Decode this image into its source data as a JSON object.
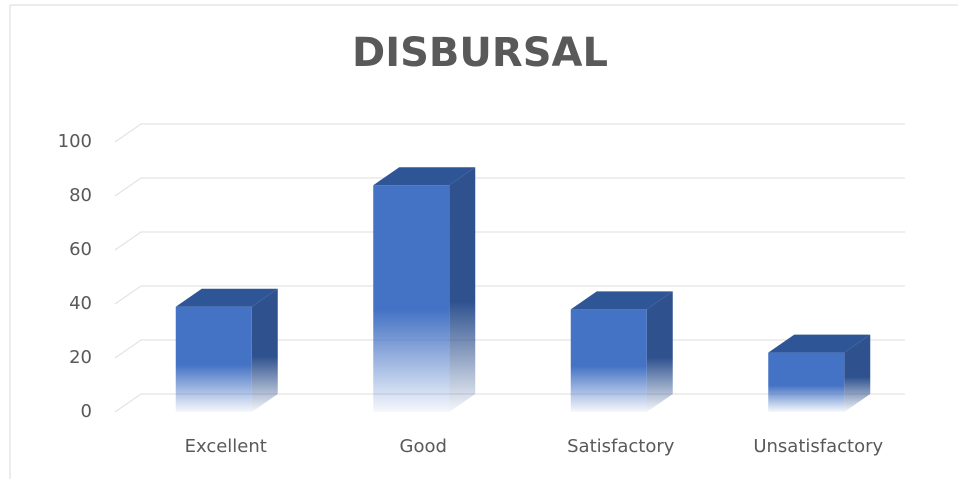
{
  "chart_data": {
    "type": "bar3d",
    "title": "DISBURSAL",
    "categories": [
      "Excellent",
      "Good",
      "Satisfactory",
      "Unsatisfactory"
    ],
    "values": [
      39,
      84,
      38,
      22
    ],
    "color": "#4472c4",
    "ylim": [
      0,
      100
    ],
    "yticks": [
      0,
      20,
      40,
      60,
      80,
      100
    ],
    "grid": true
  }
}
